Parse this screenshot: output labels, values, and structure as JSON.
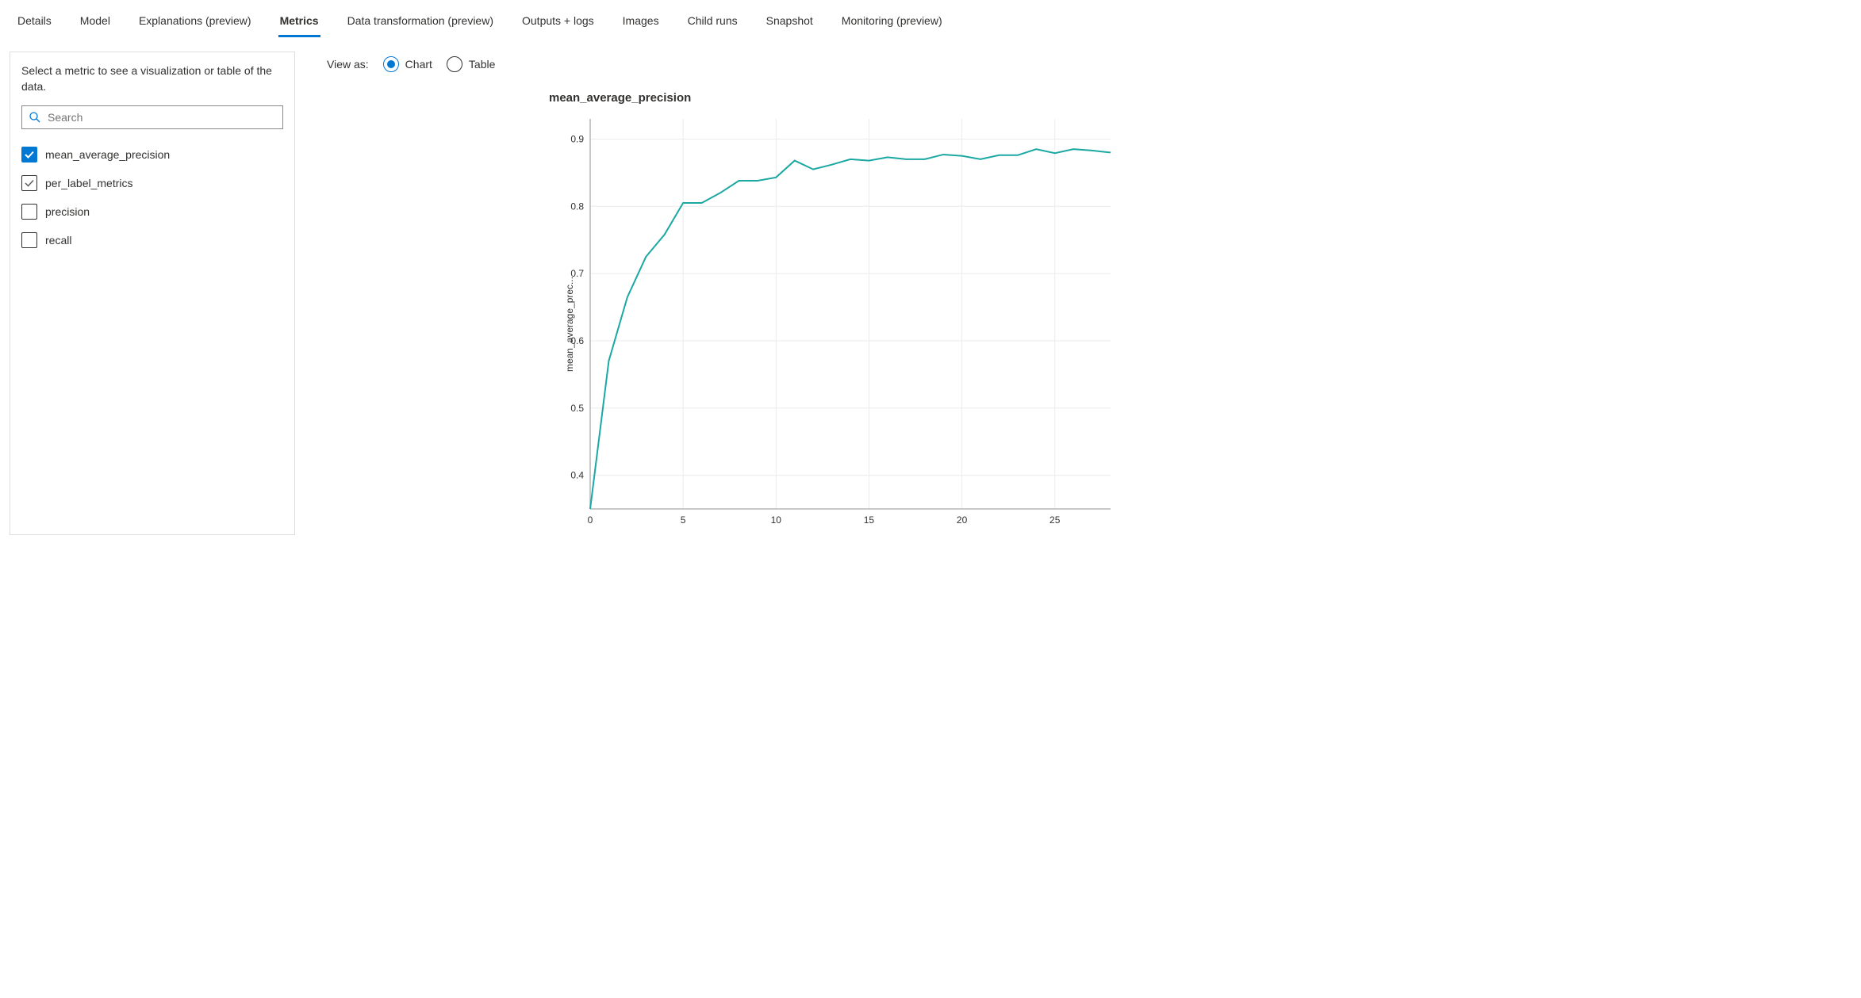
{
  "tabs": [
    {
      "label": "Details",
      "active": false
    },
    {
      "label": "Model",
      "active": false
    },
    {
      "label": "Explanations (preview)",
      "active": false
    },
    {
      "label": "Metrics",
      "active": true
    },
    {
      "label": "Data transformation (preview)",
      "active": false
    },
    {
      "label": "Outputs + logs",
      "active": false
    },
    {
      "label": "Images",
      "active": false
    },
    {
      "label": "Child runs",
      "active": false
    },
    {
      "label": "Snapshot",
      "active": false
    },
    {
      "label": "Monitoring (preview)",
      "active": false
    }
  ],
  "sidebar": {
    "description": "Select a metric to see a visualization or table of the data.",
    "search_placeholder": "Search",
    "search_value": "",
    "items": [
      {
        "name": "mean_average_precision",
        "state": "checked"
      },
      {
        "name": "per_label_metrics",
        "state": "indeterminate"
      },
      {
        "name": "precision",
        "state": "unchecked"
      },
      {
        "name": "recall",
        "state": "unchecked"
      }
    ]
  },
  "viewAs": {
    "label": "View as:",
    "options": [
      {
        "label": "Chart",
        "selected": true
      },
      {
        "label": "Table",
        "selected": false
      }
    ]
  },
  "chart": {
    "type": "line",
    "title": "mean_average_precision",
    "ylabel": "mean_average_prec...",
    "line_color": "#1ba8a3",
    "background_color": "#ffffff",
    "grid_color": "#ececec",
    "axis_color": "#b5b5b5",
    "text_color": "#323130",
    "tick_fontsize": 12,
    "title_fontsize": 15,
    "line_width": 2,
    "xlim": [
      0,
      28
    ],
    "ylim": [
      0.35,
      0.93
    ],
    "xticks": [
      0,
      5,
      10,
      15,
      20,
      25
    ],
    "yticks": [
      0.4,
      0.5,
      0.6,
      0.7,
      0.8,
      0.9
    ],
    "x": [
      0,
      1,
      2,
      3,
      4,
      5,
      6,
      7,
      8,
      9,
      10,
      11,
      12,
      13,
      14,
      15,
      16,
      17,
      18,
      19,
      20,
      21,
      22,
      23,
      24,
      25,
      26,
      27,
      28
    ],
    "y": [
      0.35,
      0.57,
      0.665,
      0.725,
      0.758,
      0.805,
      0.805,
      0.82,
      0.838,
      0.838,
      0.843,
      0.868,
      0.855,
      0.862,
      0.87,
      0.868,
      0.873,
      0.87,
      0.87,
      0.877,
      0.875,
      0.87,
      0.876,
      0.876,
      0.885,
      0.879,
      0.885,
      0.883,
      0.88
    ]
  },
  "colors": {
    "accent": "#0078d4",
    "border": "#e1dfdd",
    "text": "#323130"
  }
}
